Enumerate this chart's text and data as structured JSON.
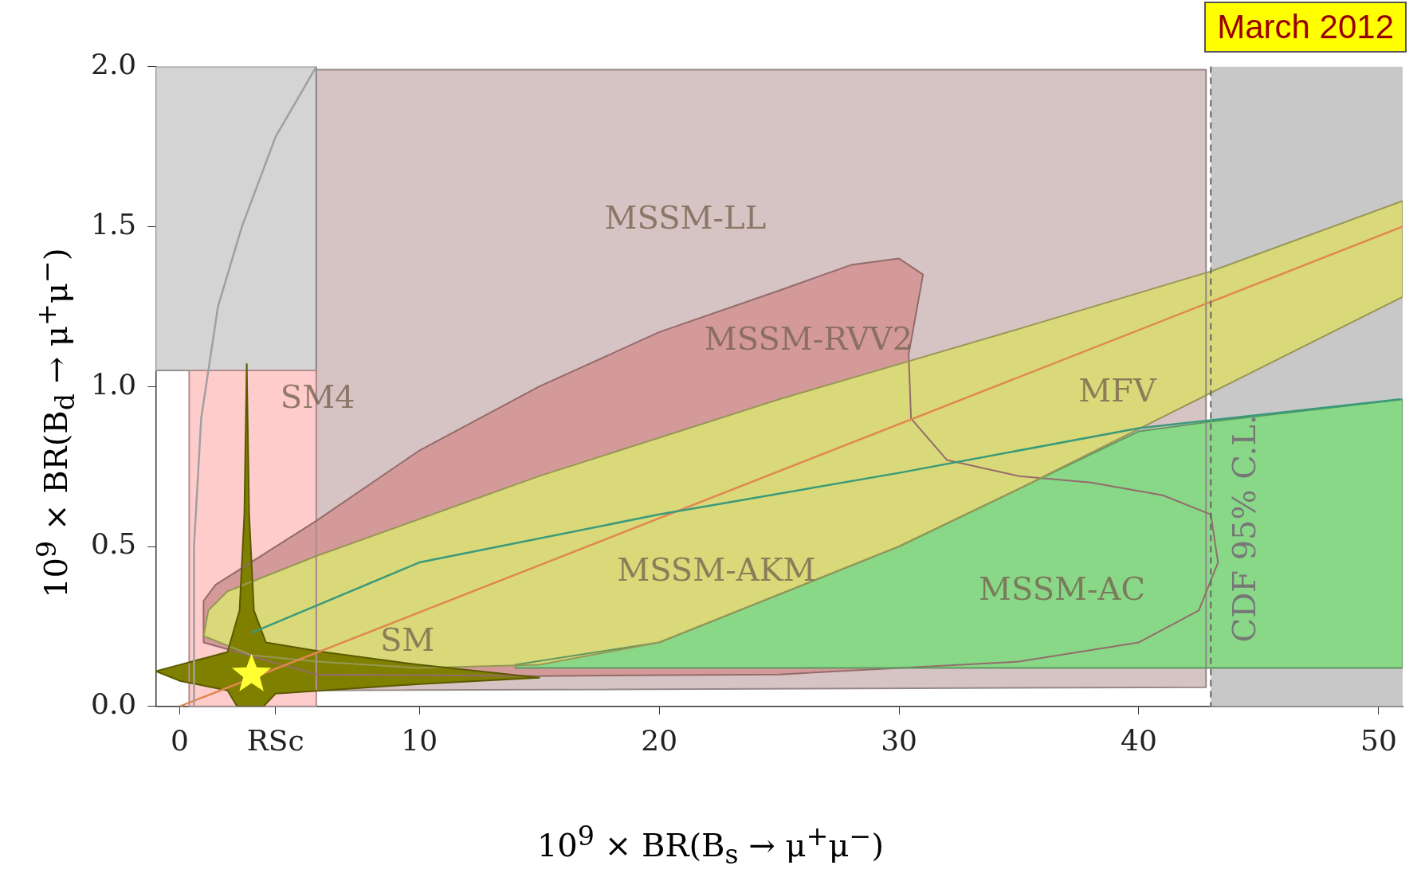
{
  "chart_data": {
    "type": "area",
    "xlabel": "10$^{9}$ × BR(B$_{s}$ → μ$^{+}$μ$^{−}$)",
    "ylabel": "10$^{9}$ × BR(B$_{d}$ → μ$^{+}$μ$^{−}$)",
    "xlim": [
      -1,
      51
    ],
    "ylim": [
      0,
      2
    ],
    "xticks": [
      0,
      {
        "value": 4,
        "label": "RSc"
      },
      10,
      20,
      30,
      40,
      50
    ],
    "yticks": [
      {
        "value": 0,
        "label": "0.0"
      },
      0.5,
      {
        "value": 1,
        "label": "1.0"
      },
      1.5,
      {
        "value": 2,
        "label": "2.0"
      }
    ],
    "grid": false,
    "legend": false,
    "series": [
      {
        "color": "#d4d4d4",
        "x": [
          -1,
          5.7,
          5.7,
          -1
        ],
        "values": [
          2,
          2,
          1.05,
          1.05
        ]
      },
      {
        "color": "#d6c3c3",
        "x": [
          5.7,
          42.8,
          42.8,
          5.7
        ],
        "values": [
          1.99,
          1.99,
          0.06,
          0.05
        ]
      },
      {
        "type": "line",
        "color": "#a0a0a0",
        "x": [
          0.6,
          0.6,
          0.9,
          1.6,
          2.6,
          4,
          5.7
        ],
        "values": [
          0,
          0.5,
          0.9,
          1.25,
          1.5,
          1.78,
          2
        ]
      },
      {
        "color": "#ffcccc",
        "x": [
          0.4,
          5.7,
          5.7,
          0.4
        ],
        "values": [
          0,
          0,
          1.05,
          1.05
        ]
      },
      {
        "color": "#d49a9a",
        "x": [
          1,
          1,
          1.5,
          5.7,
          10,
          15,
          20,
          25,
          28,
          30,
          31,
          30.4,
          30.5,
          32,
          35,
          38,
          41,
          43,
          43.3,
          42.5,
          40,
          35,
          25,
          15,
          5.7
        ],
        "values": [
          0.2,
          0.33,
          0.38,
          0.58,
          0.8,
          1,
          1.17,
          1.3,
          1.38,
          1.4,
          1.35,
          1.1,
          0.9,
          0.77,
          0.72,
          0.7,
          0.66,
          0.6,
          0.45,
          0.3,
          0.2,
          0.14,
          0.1,
          0.095,
          0.1
        ]
      },
      {
        "color": "#88d888",
        "x": [
          14,
          51,
          51,
          43,
          40,
          35,
          30,
          25,
          20,
          14
        ],
        "values": [
          0.12,
          0.12,
          0.96,
          0.89,
          0.86,
          0.68,
          0.5,
          0.35,
          0.2,
          0.13
        ]
      },
      {
        "color": "#d9d97a",
        "x": [
          1,
          1.2,
          2,
          5.7,
          15,
          25,
          35,
          43,
          51,
          51,
          43,
          35,
          30,
          25,
          20,
          15,
          10,
          5.7,
          3
        ],
        "values": [
          0.22,
          0.3,
          0.36,
          0.47,
          0.72,
          0.96,
          1.18,
          1.36,
          1.58,
          1.28,
          0.98,
          0.68,
          0.5,
          0.35,
          0.2,
          0.13,
          0.12,
          0.14,
          0.16
        ]
      },
      {
        "type": "line",
        "color": "#3a9a7a",
        "x": [
          3,
          10,
          20,
          30,
          40,
          50.9
        ],
        "values": [
          0.23,
          0.45,
          0.6,
          0.73,
          0.87,
          0.96
        ]
      },
      {
        "type": "line",
        "color": "#e08850",
        "x": [
          0,
          51
        ],
        "values": [
          0,
          1.5
        ]
      },
      {
        "color": "#808000",
        "x": [
          -1,
          0,
          2,
          2.5,
          2.7,
          2.8,
          2.9,
          3.1,
          3.6,
          6,
          10,
          15,
          10,
          6,
          4,
          3.5,
          2.4,
          2,
          0
        ],
        "values": [
          0.11,
          0.13,
          0.17,
          0.3,
          0.6,
          1.07,
          0.6,
          0.3,
          0.2,
          0.17,
          0.13,
          0.09,
          0.07,
          0.05,
          0.04,
          0,
          0,
          0.05,
          0.08
        ]
      },
      {
        "type": "scatter",
        "marker": "star",
        "color": "#ffff33",
        "x": [
          3
        ],
        "values": [
          0.1
        ]
      }
    ],
    "bands": [
      {
        "axis": "x",
        "from": 43,
        "to": 51,
        "color": "#c8c8c8"
      }
    ],
    "ref_lines": [
      {
        "axis": "x",
        "value": 43,
        "label": "CDF 95% C.L.",
        "line_style": "dashed",
        "color": "#666666"
      }
    ],
    "annotations": [
      "MSSM-LL",
      "MSSM-RVV2",
      "MFV",
      "MSSM-AKM",
      "MSSM-AC",
      "SM4",
      "SM",
      "March 2012"
    ]
  }
}
